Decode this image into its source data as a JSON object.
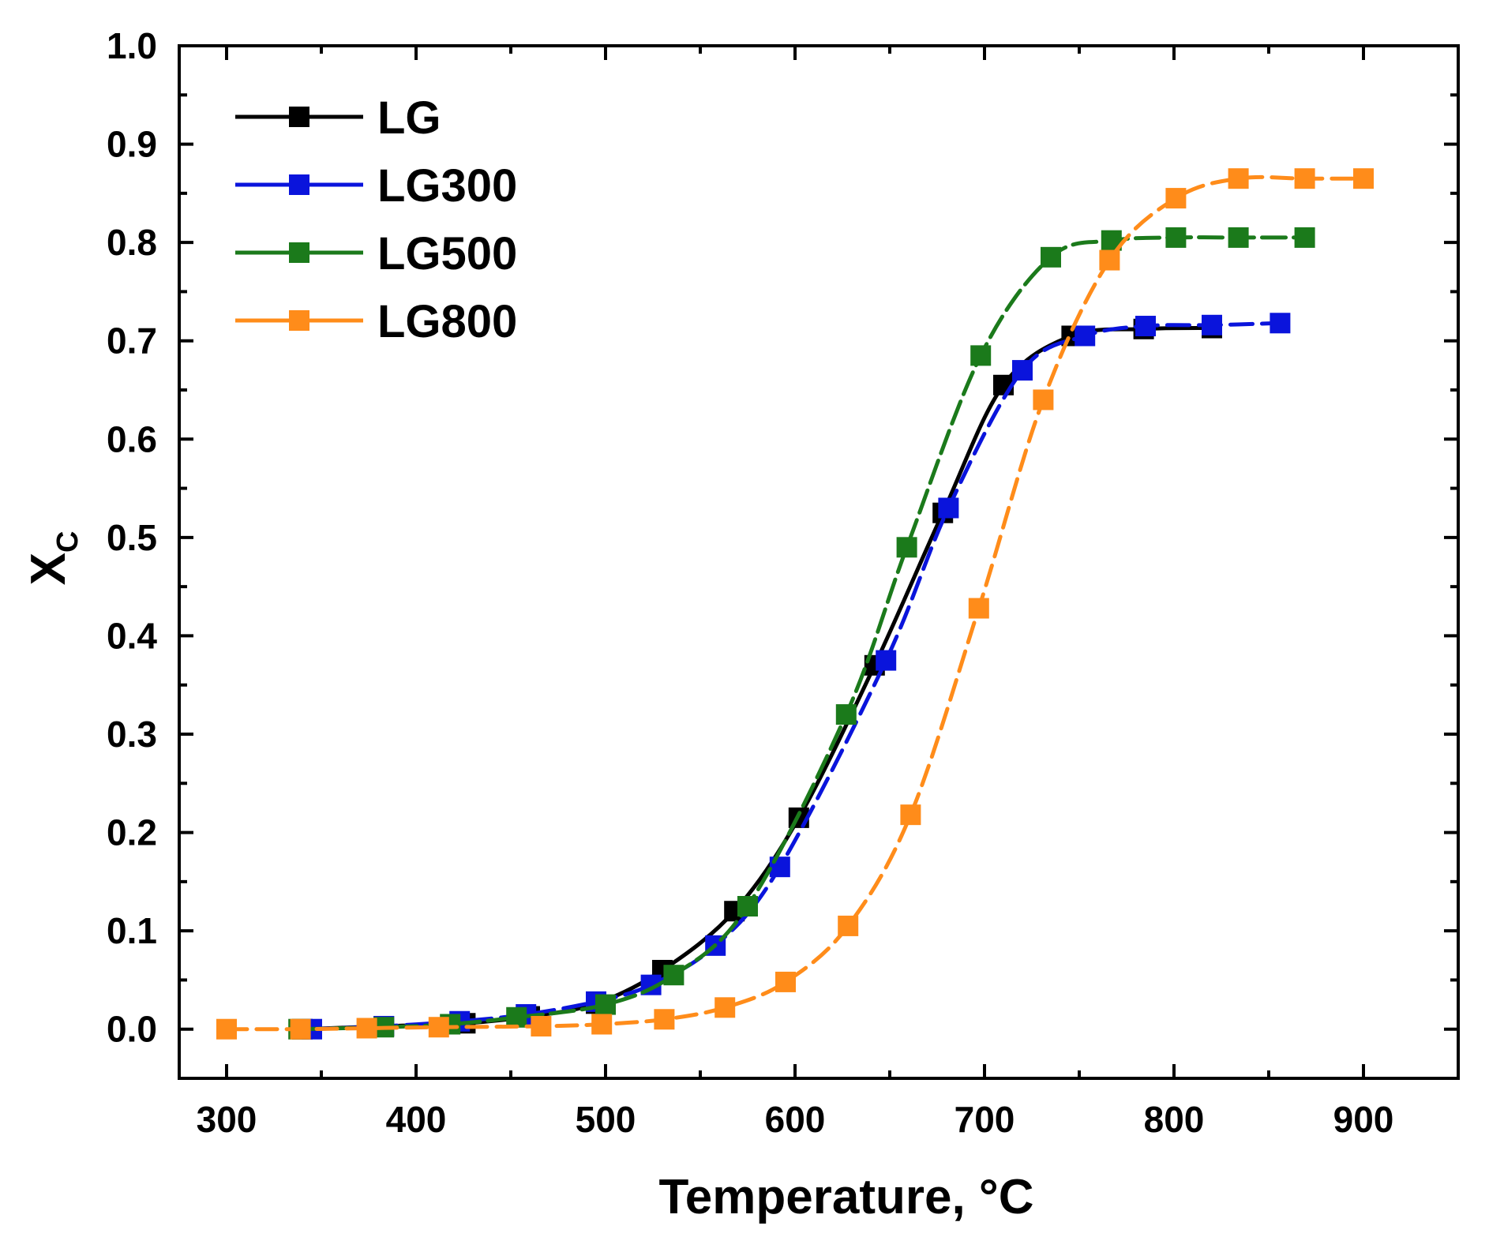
{
  "chart_data": {
    "type": "line",
    "title": "",
    "xlabel": "Temperature, °C",
    "ylabel": "X",
    "ylabel_subscript": "C",
    "xlim": [
      275,
      950
    ],
    "ylim": [
      -0.05,
      1.0
    ],
    "x_ticks": [
      "300",
      "400",
      "500",
      "600",
      "700",
      "800",
      "900"
    ],
    "y_ticks": [
      "0.0",
      "0.1",
      "0.2",
      "0.3",
      "0.4",
      "0.5",
      "0.6",
      "0.7",
      "0.8",
      "0.9",
      "1.0"
    ],
    "grid": false,
    "legend_position": "top-left",
    "series": [
      {
        "name": "LG",
        "color": "#000000",
        "marker": "square",
        "x": [
          340,
          383,
          426,
          460,
          495,
          530,
          568,
          602,
          642,
          678,
          710,
          746,
          784,
          820
        ],
        "y": [
          0.0,
          0.003,
          0.006,
          0.013,
          0.026,
          0.06,
          0.12,
          0.215,
          0.37,
          0.525,
          0.655,
          0.705,
          0.712,
          0.713
        ]
      },
      {
        "name": "LG300",
        "color": "#0a14dc",
        "marker": "square",
        "x": [
          345,
          383,
          423,
          458,
          495,
          524,
          558,
          592,
          648,
          681,
          720,
          753,
          785,
          820,
          856
        ],
        "y": [
          0.0,
          0.003,
          0.008,
          0.015,
          0.028,
          0.045,
          0.085,
          0.165,
          0.375,
          0.53,
          0.67,
          0.705,
          0.715,
          0.716,
          0.718
        ]
      },
      {
        "name": "LG500",
        "color": "#1b7a1b",
        "marker": "square",
        "x": [
          338,
          383,
          418,
          453,
          500,
          536,
          575,
          627,
          659,
          698,
          735,
          767,
          801,
          834,
          869
        ],
        "y": [
          0.0,
          0.002,
          0.005,
          0.012,
          0.025,
          0.055,
          0.125,
          0.32,
          0.49,
          0.685,
          0.785,
          0.802,
          0.805,
          0.805,
          0.805
        ]
      },
      {
        "name": "LG800",
        "color": "#ff8c1a",
        "marker": "square",
        "x": [
          300,
          339,
          374,
          412,
          466,
          498,
          531,
          563,
          595,
          628,
          661,
          697,
          731,
          766,
          801,
          834,
          869,
          900
        ],
        "y": [
          0.0,
          0.0,
          0.001,
          0.002,
          0.003,
          0.005,
          0.01,
          0.022,
          0.048,
          0.105,
          0.218,
          0.428,
          0.64,
          0.782,
          0.845,
          0.865,
          0.865,
          0.865
        ]
      }
    ]
  }
}
